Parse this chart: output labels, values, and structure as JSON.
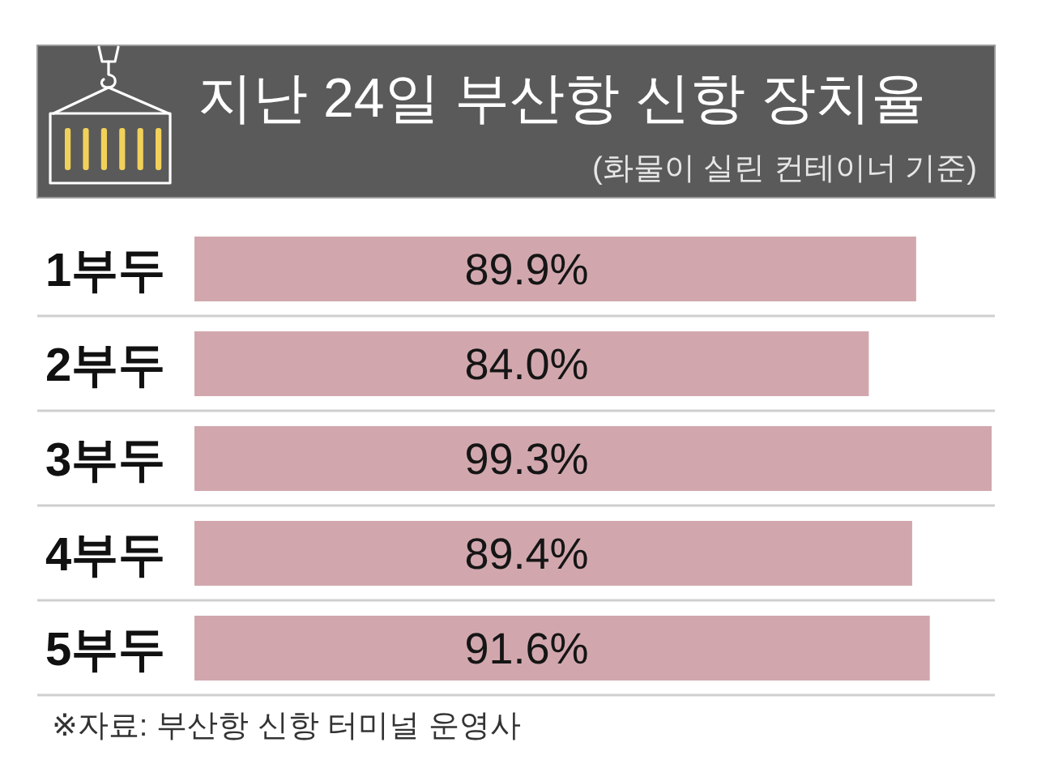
{
  "chart_data": {
    "type": "bar",
    "orientation": "horizontal",
    "title": "지난 24일 부산항 신항 장치율",
    "subtitle": "(화물이 실린 컨테이너 기준)",
    "categories": [
      "1부두",
      "2부두",
      "3부두",
      "4부두",
      "5부두"
    ],
    "values": [
      89.9,
      84.0,
      99.3,
      89.4,
      91.6
    ],
    "value_labels": [
      "89.9%",
      "84.0%",
      "99.3%",
      "89.4%",
      "91.6%"
    ],
    "color": "#d1a7ad",
    "annotations": [
      "※자료: 부산항 신항 터미널 운영사"
    ]
  }
}
